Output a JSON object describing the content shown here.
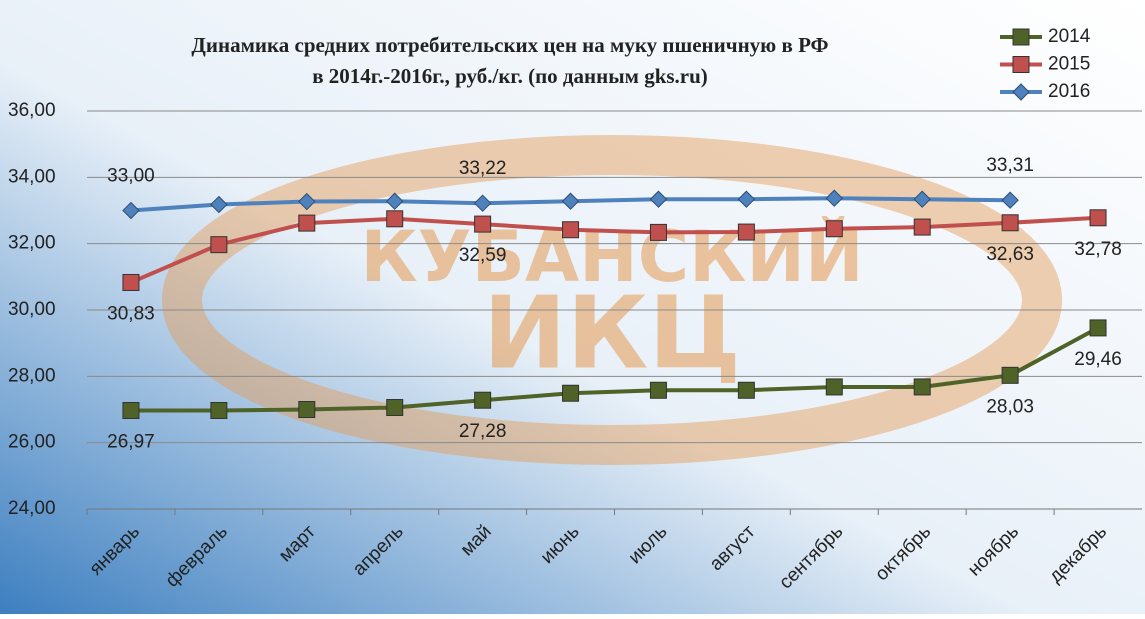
{
  "chart_data": {
    "type": "line",
    "title": [
      "Динамика средних потребительских цен на муку пшеничную  в РФ",
      "в 2014г.-2016г., руб./кг. (по данным gks.ru)"
    ],
    "watermark": [
      "КУБАНСКИЙ",
      "ИКЦ"
    ],
    "categories": [
      "январь",
      "февраль",
      "март",
      "апрель",
      "май",
      "июнь",
      "июль",
      "август",
      "сентябрь",
      "октябрь",
      "ноябрь",
      "декабрь"
    ],
    "series": [
      {
        "name": "2014",
        "color": "#4f6228",
        "marker": "square",
        "values": [
          26.97,
          26.97,
          27.0,
          27.06,
          27.28,
          27.49,
          27.58,
          27.58,
          27.68,
          27.68,
          28.03,
          29.46
        ],
        "value_labels": [
          "26,97",
          null,
          null,
          null,
          "27,28",
          null,
          null,
          null,
          null,
          null,
          "28,03",
          "29,46"
        ]
      },
      {
        "name": "2015",
        "color": "#c0504d",
        "marker": "square",
        "values": [
          30.83,
          31.97,
          32.62,
          32.75,
          32.59,
          32.42,
          32.34,
          32.35,
          32.45,
          32.5,
          32.63,
          32.78
        ],
        "value_labels": [
          "30,83",
          null,
          null,
          null,
          "32,59",
          null,
          null,
          null,
          null,
          null,
          "32,63",
          "32,78"
        ]
      },
      {
        "name": "2016",
        "color": "#4f81bd",
        "marker": "diamond",
        "values": [
          33.0,
          33.18,
          33.27,
          33.28,
          33.22,
          33.28,
          33.34,
          33.34,
          33.37,
          33.34,
          33.31,
          null
        ],
        "value_labels": [
          "33,00",
          null,
          null,
          null,
          "33,22",
          null,
          null,
          null,
          null,
          null,
          "33,31",
          null
        ]
      }
    ],
    "ylim": [
      24,
      36
    ],
    "yticks": [
      {
        "value": 24,
        "label": "24,00"
      },
      {
        "value": 26,
        "label": "26,00"
      },
      {
        "value": 28,
        "label": "28,00"
      },
      {
        "value": 30,
        "label": "30,00"
      },
      {
        "value": 32,
        "label": "32,00"
      },
      {
        "value": 34,
        "label": "34,00"
      },
      {
        "value": 36,
        "label": "36,00"
      }
    ],
    "grid": true,
    "legend": "top-right"
  }
}
